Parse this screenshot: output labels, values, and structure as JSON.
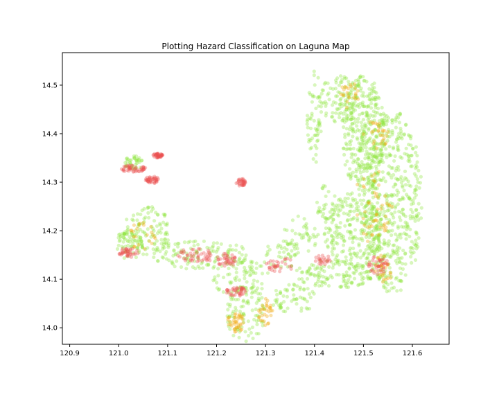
{
  "chart_data": {
    "type": "scatter",
    "title": "Plotting Hazard Classification on Laguna Map",
    "xlabel": "",
    "ylabel": "",
    "xlim": [
      120.885,
      121.675
    ],
    "ylim": [
      13.966,
      14.567
    ],
    "xticks": [
      "120.9",
      "121.0",
      "121.1",
      "121.2",
      "121.3",
      "121.4",
      "121.5",
      "121.6"
    ],
    "yticks": [
      "14.0",
      "14.1",
      "14.2",
      "14.3",
      "14.4",
      "14.5"
    ],
    "grid": false,
    "legend": "none",
    "series": [
      {
        "class": "low",
        "color": "#8ee53f",
        "regions": [
          {
            "cx": 121.56,
            "cy": 14.26,
            "rx": 0.06,
            "ry": 0.19,
            "density": 1
          },
          {
            "cx": 121.5,
            "cy": 14.4,
            "rx": 0.045,
            "ry": 0.12,
            "density": 1
          },
          {
            "cx": 121.48,
            "cy": 14.2,
            "rx": 0.06,
            "ry": 0.08,
            "density": 0.8
          },
          {
            "cx": 121.45,
            "cy": 14.47,
            "rx": 0.04,
            "ry": 0.05,
            "density": 0.7
          },
          {
            "cx": 121.4,
            "cy": 14.43,
            "rx": 0.015,
            "ry": 0.1,
            "density": 0.6
          },
          {
            "cx": 121.44,
            "cy": 14.11,
            "rx": 0.08,
            "ry": 0.03,
            "density": 0.8
          },
          {
            "cx": 121.36,
            "cy": 14.06,
            "rx": 0.05,
            "ry": 0.03,
            "density": 0.6
          },
          {
            "cx": 121.26,
            "cy": 14.03,
            "rx": 0.04,
            "ry": 0.06,
            "density": 0.6
          },
          {
            "cx": 121.25,
            "cy": 14.1,
            "rx": 0.06,
            "ry": 0.04,
            "density": 0.5
          },
          {
            "cx": 121.17,
            "cy": 14.15,
            "rx": 0.1,
            "ry": 0.03,
            "density": 0.6
          },
          {
            "cx": 121.06,
            "cy": 14.2,
            "rx": 0.05,
            "ry": 0.05,
            "density": 0.7
          },
          {
            "cx": 121.02,
            "cy": 14.17,
            "rx": 0.03,
            "ry": 0.03,
            "density": 0.7
          },
          {
            "cx": 121.03,
            "cy": 14.34,
            "rx": 0.02,
            "ry": 0.015,
            "density": 0.5
          },
          {
            "cx": 121.37,
            "cy": 14.19,
            "rx": 0.04,
            "ry": 0.04,
            "density": 0.4
          },
          {
            "cx": 121.43,
            "cy": 14.26,
            "rx": 0.03,
            "ry": 0.04,
            "density": 0.4
          },
          {
            "cx": 121.33,
            "cy": 14.15,
            "rx": 0.04,
            "ry": 0.03,
            "density": 0.5
          }
        ]
      },
      {
        "class": "moderate",
        "color": "#f2a50a",
        "regions": [
          {
            "cx": 121.53,
            "cy": 14.4,
            "rx": 0.03,
            "ry": 0.03,
            "density": 0.35
          },
          {
            "cx": 121.52,
            "cy": 14.25,
            "rx": 0.04,
            "ry": 0.08,
            "density": 0.25
          },
          {
            "cx": 121.47,
            "cy": 14.48,
            "rx": 0.02,
            "ry": 0.03,
            "density": 0.3
          },
          {
            "cx": 121.24,
            "cy": 14.01,
            "rx": 0.02,
            "ry": 0.02,
            "density": 0.5
          },
          {
            "cx": 121.3,
            "cy": 14.03,
            "rx": 0.015,
            "ry": 0.03,
            "density": 0.4
          },
          {
            "cx": 121.54,
            "cy": 14.12,
            "rx": 0.02,
            "ry": 0.03,
            "density": 0.35
          },
          {
            "cx": 121.05,
            "cy": 14.19,
            "rx": 0.03,
            "ry": 0.03,
            "density": 0.3
          }
        ]
      },
      {
        "class": "high",
        "color": "#ec4f4f",
        "regions": [
          {
            "cx": 121.16,
            "cy": 14.15,
            "rx": 0.04,
            "ry": 0.015,
            "density": 0.6
          },
          {
            "cx": 121.22,
            "cy": 14.14,
            "rx": 0.02,
            "ry": 0.015,
            "density": 0.5
          },
          {
            "cx": 121.24,
            "cy": 14.075,
            "rx": 0.02,
            "ry": 0.01,
            "density": 0.5
          },
          {
            "cx": 121.02,
            "cy": 14.155,
            "rx": 0.02,
            "ry": 0.01,
            "density": 0.5
          },
          {
            "cx": 121.03,
            "cy": 14.328,
            "rx": 0.025,
            "ry": 0.008,
            "density": 0.6
          },
          {
            "cx": 121.07,
            "cy": 14.305,
            "rx": 0.015,
            "ry": 0.008,
            "density": 0.5
          },
          {
            "cx": 121.08,
            "cy": 14.355,
            "rx": 0.01,
            "ry": 0.005,
            "density": 0.5
          },
          {
            "cx": 121.53,
            "cy": 14.13,
            "rx": 0.02,
            "ry": 0.02,
            "density": 0.5
          },
          {
            "cx": 121.33,
            "cy": 14.13,
            "rx": 0.03,
            "ry": 0.015,
            "density": 0.4
          },
          {
            "cx": 121.25,
            "cy": 14.3,
            "rx": 0.01,
            "ry": 0.008,
            "density": 0.4
          },
          {
            "cx": 121.42,
            "cy": 14.14,
            "rx": 0.02,
            "ry": 0.01,
            "density": 0.3
          }
        ]
      }
    ]
  }
}
